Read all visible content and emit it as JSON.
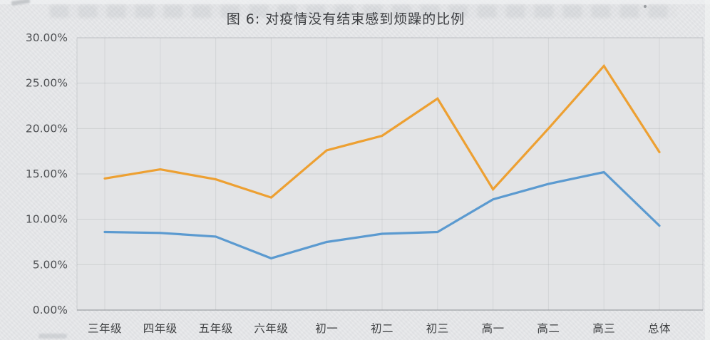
{
  "page": {
    "background_color": "#e8e9eb",
    "panel_color": "#e3e4e6"
  },
  "chart_data": {
    "type": "line",
    "title": "图 6: 对疫情没有结束感到烦躁的比例",
    "categories": [
      "三年级",
      "四年级",
      "五年级",
      "六年级",
      "初一",
      "初二",
      "初三",
      "高一",
      "高二",
      "高三",
      "总体"
    ],
    "series": [
      {
        "name": "比较烦躁",
        "color": "#5b9ad0",
        "values": [
          8.6,
          8.5,
          8.1,
          5.7,
          7.5,
          8.4,
          8.6,
          12.2,
          13.9,
          15.2,
          9.3
        ]
      },
      {
        "name": "很烦躁",
        "color": "#eda032",
        "values": [
          14.5,
          15.5,
          14.4,
          12.4,
          17.6,
          19.2,
          23.3,
          13.3,
          20.0,
          26.9,
          17.4
        ]
      }
    ],
    "xlabel": "",
    "ylabel": "",
    "ylim": [
      0,
      30
    ],
    "y_tick_step": 5,
    "y_tick_labels": [
      "0.00%",
      "5.00%",
      "10.00%",
      "15.00%",
      "20.00%",
      "25.00%",
      "30.00%"
    ],
    "grid": true,
    "gridlines": "horizontal-and-vertical",
    "legend_position": "top-center",
    "colors": {
      "grid": "#9ba0a5",
      "axis": "#7d8287",
      "tick_text": "#4d4f52",
      "category_text": "#3e4042",
      "title_text": "#3b3d40"
    }
  }
}
